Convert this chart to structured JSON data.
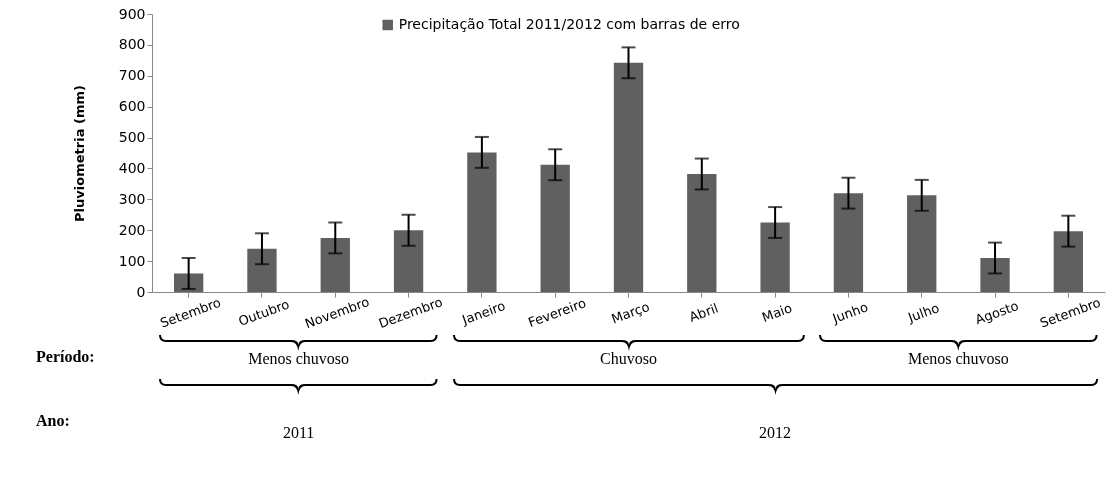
{
  "chart_data": {
    "type": "bar",
    "ylabel": "Pluviometria (mm)",
    "categories": [
      "Setembro",
      "Outubro",
      "Novembro",
      "Dezembro",
      "Janeiro",
      "Fevereiro",
      "Março",
      "Abril",
      "Maio",
      "Junho",
      "Julho",
      "Agosto",
      "Setembro"
    ],
    "series": [
      {
        "name": "Precipitação Total 2011/2012 com barras de erro",
        "color": "#606060",
        "values": [
          60,
          140,
          175,
          200,
          452,
          412,
          742,
          382,
          225,
          320,
          313,
          110,
          197
        ],
        "errors": [
          50,
          50,
          50,
          50,
          50,
          50,
          50,
          50,
          50,
          50,
          50,
          50,
          50
        ]
      }
    ],
    "ylim": [
      0,
      900
    ],
    "yticks": [
      0,
      100,
      200,
      300,
      400,
      500,
      600,
      700,
      800,
      900
    ],
    "grid": false,
    "legend": "top",
    "annotations": [
      "Período:",
      "Menos chuvoso",
      "Chuvoso",
      "Menos chuvoso",
      "Ano:",
      "2011",
      "2012"
    ]
  }
}
